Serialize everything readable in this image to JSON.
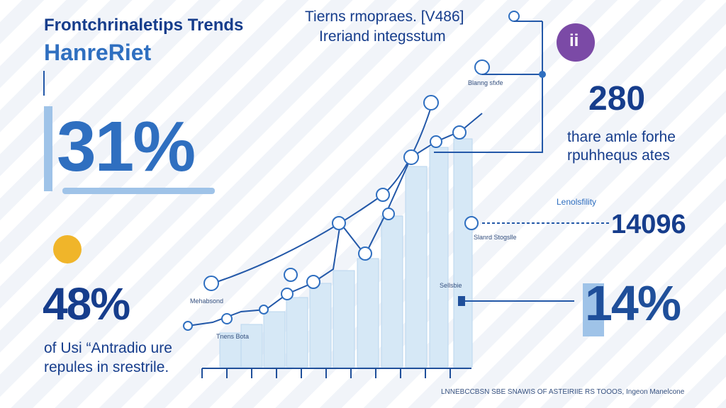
{
  "header": {
    "title": "Frontchrinaletips Trends",
    "subtitle": "HanreRiet"
  },
  "top_note": {
    "lines": [
      "Tierns rmopraes. [V486]",
      "Ireriand integsstum"
    ]
  },
  "stats": [
    {
      "value": "31%"
    },
    {
      "value": "48%",
      "caption": [
        "of Usi “Antradio ure",
        "repules in srestrile."
      ]
    },
    {
      "value": "280",
      "caption": [
        "thare amle forhe",
        "rpuhhequs ates"
      ]
    },
    {
      "label": "Lenolsfility",
      "value": "14096"
    },
    {
      "value": "14%"
    }
  ],
  "badge": {
    "text": "ii"
  },
  "chart_labels": [
    "Mehabsond",
    "Tnens Bota",
    "Sellsbie",
    "Blanng sfxfe",
    "Slanrd Stogslle"
  ],
  "footer": {
    "text": "LNNEBCCBSN SBE SNAWIS OF ASTEIRIIE RS TOOOS, Ingeon Manelcone"
  }
}
